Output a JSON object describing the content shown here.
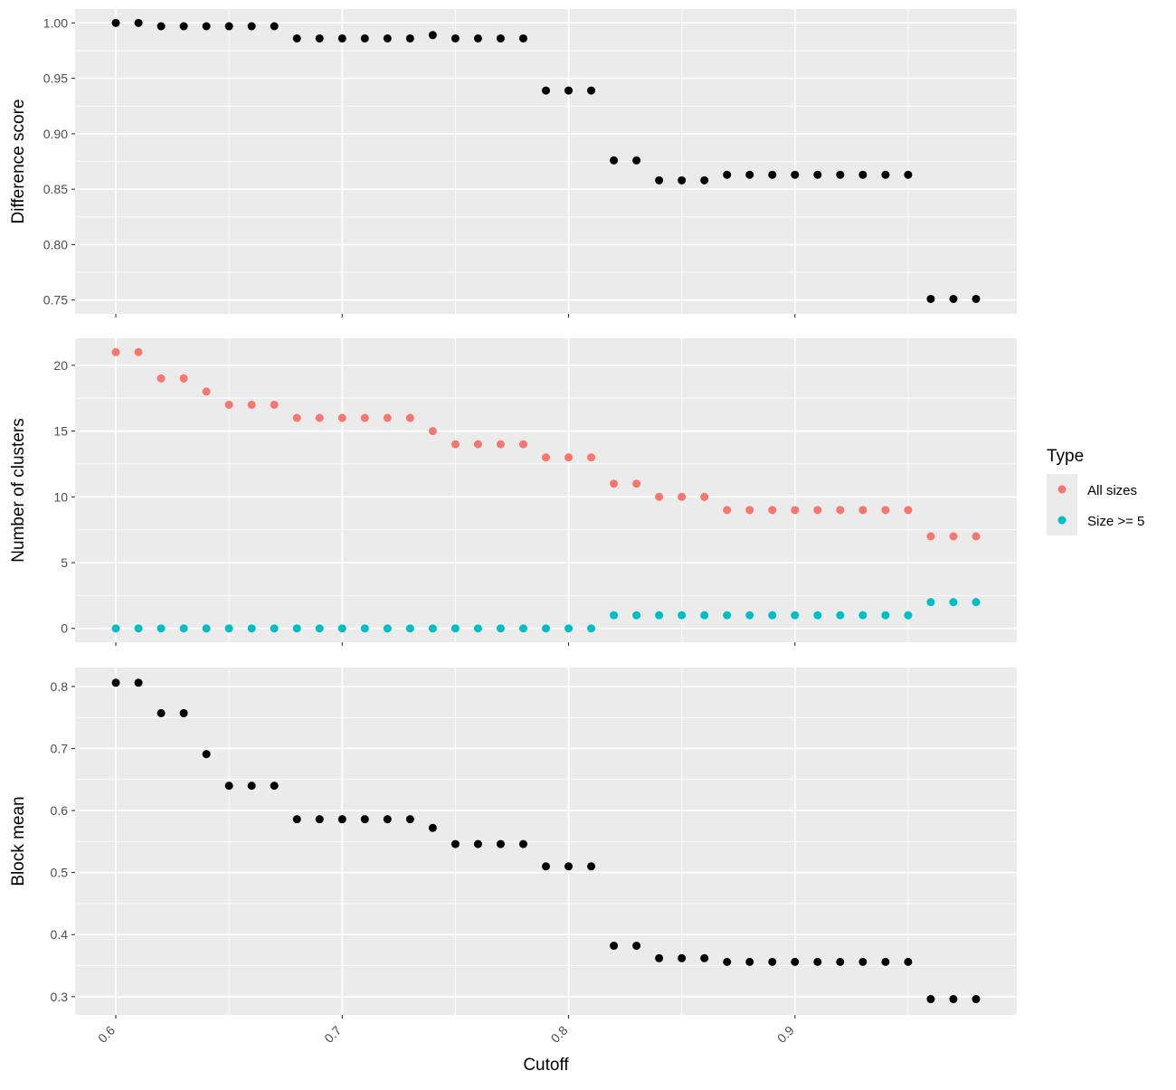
{
  "chart_data": {
    "type": "scatter",
    "xlabel": "Cutoff",
    "x_ticks": [
      "0.6",
      "0.7",
      "0.8",
      "0.9"
    ],
    "x": [
      0.6,
      0.61,
      0.62,
      0.63,
      0.64,
      0.65,
      0.66,
      0.67,
      0.68,
      0.69,
      0.7,
      0.71,
      0.72,
      0.73,
      0.74,
      0.75,
      0.76,
      0.77,
      0.78,
      0.79,
      0.8,
      0.81,
      0.82,
      0.83,
      0.84,
      0.85,
      0.86,
      0.87,
      0.88,
      0.89,
      0.9,
      0.91,
      0.92,
      0.93,
      0.94,
      0.95,
      0.96,
      0.97,
      0.98
    ],
    "xlim": [
      0.582,
      0.998
    ],
    "grid": true,
    "legend_position": "right",
    "legend": {
      "title": "Type",
      "entries": [
        {
          "label": "All sizes",
          "color": "#F8766D"
        },
        {
          "label": "Size >= 5",
          "color": "#00BFC4"
        }
      ]
    },
    "panels": [
      {
        "ylabel": "Difference score",
        "ylim": [
          0.7375,
          1.0125
        ],
        "yticks": [
          "0.75",
          "0.80",
          "0.85",
          "0.90",
          "0.95",
          "1.00"
        ],
        "series": [
          {
            "color": "#000000",
            "values": [
              1.0,
              1.0,
              0.997,
              0.997,
              0.997,
              0.997,
              0.997,
              0.997,
              0.986,
              0.986,
              0.986,
              0.986,
              0.986,
              0.986,
              0.989,
              0.986,
              0.986,
              0.986,
              0.986,
              0.939,
              0.939,
              0.939,
              0.876,
              0.876,
              0.858,
              0.858,
              0.858,
              0.863,
              0.863,
              0.863,
              0.863,
              0.863,
              0.863,
              0.863,
              0.863,
              0.863,
              0.751,
              0.751,
              0.751
            ]
          }
        ]
      },
      {
        "ylabel": "Number of clusters",
        "ylim": [
          -1.05,
          22.05
        ],
        "yticks": [
          "0",
          "5",
          "10",
          "15",
          "20"
        ],
        "series": [
          {
            "name": "All sizes",
            "color": "#F8766D",
            "values": [
              21,
              21,
              19,
              19,
              18,
              17,
              17,
              17,
              16,
              16,
              16,
              16,
              16,
              16,
              15,
              14,
              14,
              14,
              14,
              13,
              13,
              13,
              11,
              11,
              10,
              10,
              10,
              9,
              9,
              9,
              9,
              9,
              9,
              9,
              9,
              9,
              7,
              7,
              7
            ]
          },
          {
            "name": "Size >= 5",
            "color": "#00BFC4",
            "values": [
              0,
              0,
              0,
              0,
              0,
              0,
              0,
              0,
              0,
              0,
              0,
              0,
              0,
              0,
              0,
              0,
              0,
              0,
              0,
              0,
              0,
              0,
              1,
              1,
              1,
              1,
              1,
              1,
              1,
              1,
              1,
              1,
              1,
              1,
              1,
              1,
              2,
              2,
              2
            ]
          }
        ]
      },
      {
        "ylabel": "Block mean",
        "ylim": [
          0.2705,
          0.8305
        ],
        "yticks": [
          "0.3",
          "0.4",
          "0.5",
          "0.6",
          "0.7",
          "0.8"
        ],
        "series": [
          {
            "color": "#000000",
            "values": [
              0.806,
              0.806,
              0.757,
              0.757,
              0.691,
              0.64,
              0.64,
              0.64,
              0.586,
              0.586,
              0.586,
              0.586,
              0.586,
              0.586,
              0.572,
              0.546,
              0.546,
              0.546,
              0.546,
              0.51,
              0.51,
              0.51,
              0.382,
              0.382,
              0.362,
              0.362,
              0.362,
              0.356,
              0.356,
              0.356,
              0.356,
              0.356,
              0.356,
              0.356,
              0.356,
              0.356,
              0.296,
              0.296,
              0.296
            ]
          }
        ]
      }
    ]
  }
}
